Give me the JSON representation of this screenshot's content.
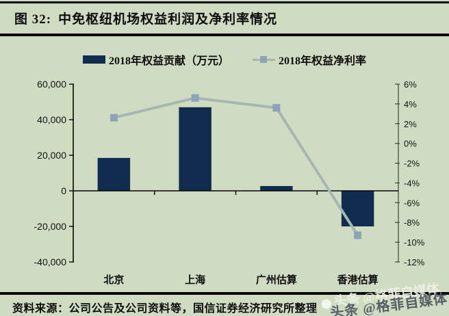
{
  "header": {
    "figure_label": "图 32:",
    "title": "中免枢纽机场权益利润及净利率情况"
  },
  "chart_data": {
    "type": "bar",
    "title": "中免枢纽机场权益利润及净利率情况",
    "categories": [
      "北京",
      "上海",
      "广州估算",
      "香港估算"
    ],
    "series": [
      {
        "name": "2018年权益贡献（万元）",
        "type": "bar",
        "axis": "left",
        "values": [
          18500,
          47000,
          2700,
          -20000
        ],
        "color": "#102c4e"
      },
      {
        "name": "2018年权益净利率",
        "type": "line",
        "axis": "right",
        "values": [
          2.6,
          4.6,
          3.6,
          -9.3
        ],
        "color": "#a6b6b0",
        "marker_color": "#8da4b8"
      }
    ],
    "left_axis": {
      "min": -40000,
      "max": 60000,
      "tick_step": 20000,
      "tick_labels": [
        "60,000",
        "40,000",
        "20,000",
        "0",
        "-20,000",
        "-40,000"
      ]
    },
    "right_axis": {
      "min": -12,
      "max": 6,
      "tick_step": 2,
      "tick_labels": [
        "6%",
        "4%",
        "2%",
        "0%",
        "-2%",
        "-4%",
        "-6%",
        "-8%",
        "-10%",
        "-12%"
      ]
    },
    "legend_position": "top",
    "grid": false
  },
  "footer": {
    "source": "资料来源：公司公告及公司资料等，国信证券经济研究所整理"
  },
  "watermark": {
    "text": "头条 @格菲自媒体"
  },
  "colors": {
    "background": "#d0dcc2",
    "bar": "#102c4e",
    "line": "#a6b6b0",
    "marker": "#8da4b8",
    "rule": "#050505"
  }
}
